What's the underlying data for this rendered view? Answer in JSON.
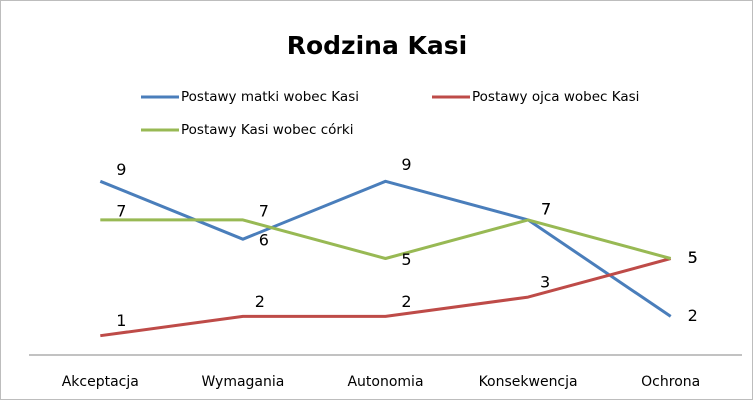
{
  "chart_data": {
    "type": "line",
    "title": "Rodzina Kasi",
    "categories": [
      "Akceptacja",
      "Wymagania",
      "Autonomia",
      "Konsekwencja",
      "Ochrona"
    ],
    "series": [
      {
        "name": "Postawy matki wobec Kasi",
        "color": "#4a7ebb",
        "values": [
          9,
          6,
          9,
          7,
          2
        ]
      },
      {
        "name": "Postawy ojca wobec Kasi",
        "color": "#be4b48",
        "values": [
          1,
          2,
          2,
          3,
          5
        ]
      },
      {
        "name": "Postawy Kasi wobec córki",
        "color": "#98b954",
        "values": [
          7,
          7,
          5,
          7,
          5
        ]
      }
    ],
    "ylim": [
      0,
      10
    ],
    "legend": "top"
  }
}
